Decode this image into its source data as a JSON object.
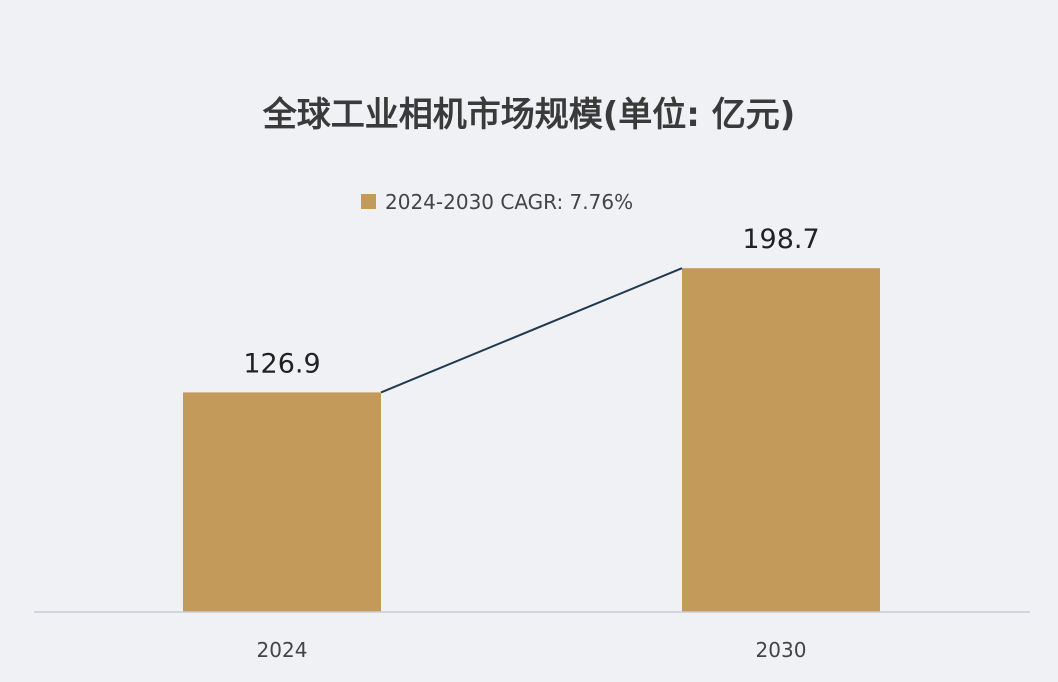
{
  "chart_data": {
    "type": "bar",
    "title": "全球工业相机市场规模(单位: 亿元)",
    "categories": [
      "2024",
      "2030"
    ],
    "series": [
      {
        "name": "2024-2030 CAGR: 7.76%",
        "values": [
          126.9,
          198.7
        ],
        "color": "#c49a5a"
      }
    ],
    "data_labels": [
      "126.9",
      "198.7"
    ],
    "trend_line": true,
    "trend_line_color": "#1f3a4f",
    "axis_line_color": "#c8ccd4",
    "legend_position": "top-center",
    "grid": false,
    "ylim": [
      0,
      230
    ]
  }
}
